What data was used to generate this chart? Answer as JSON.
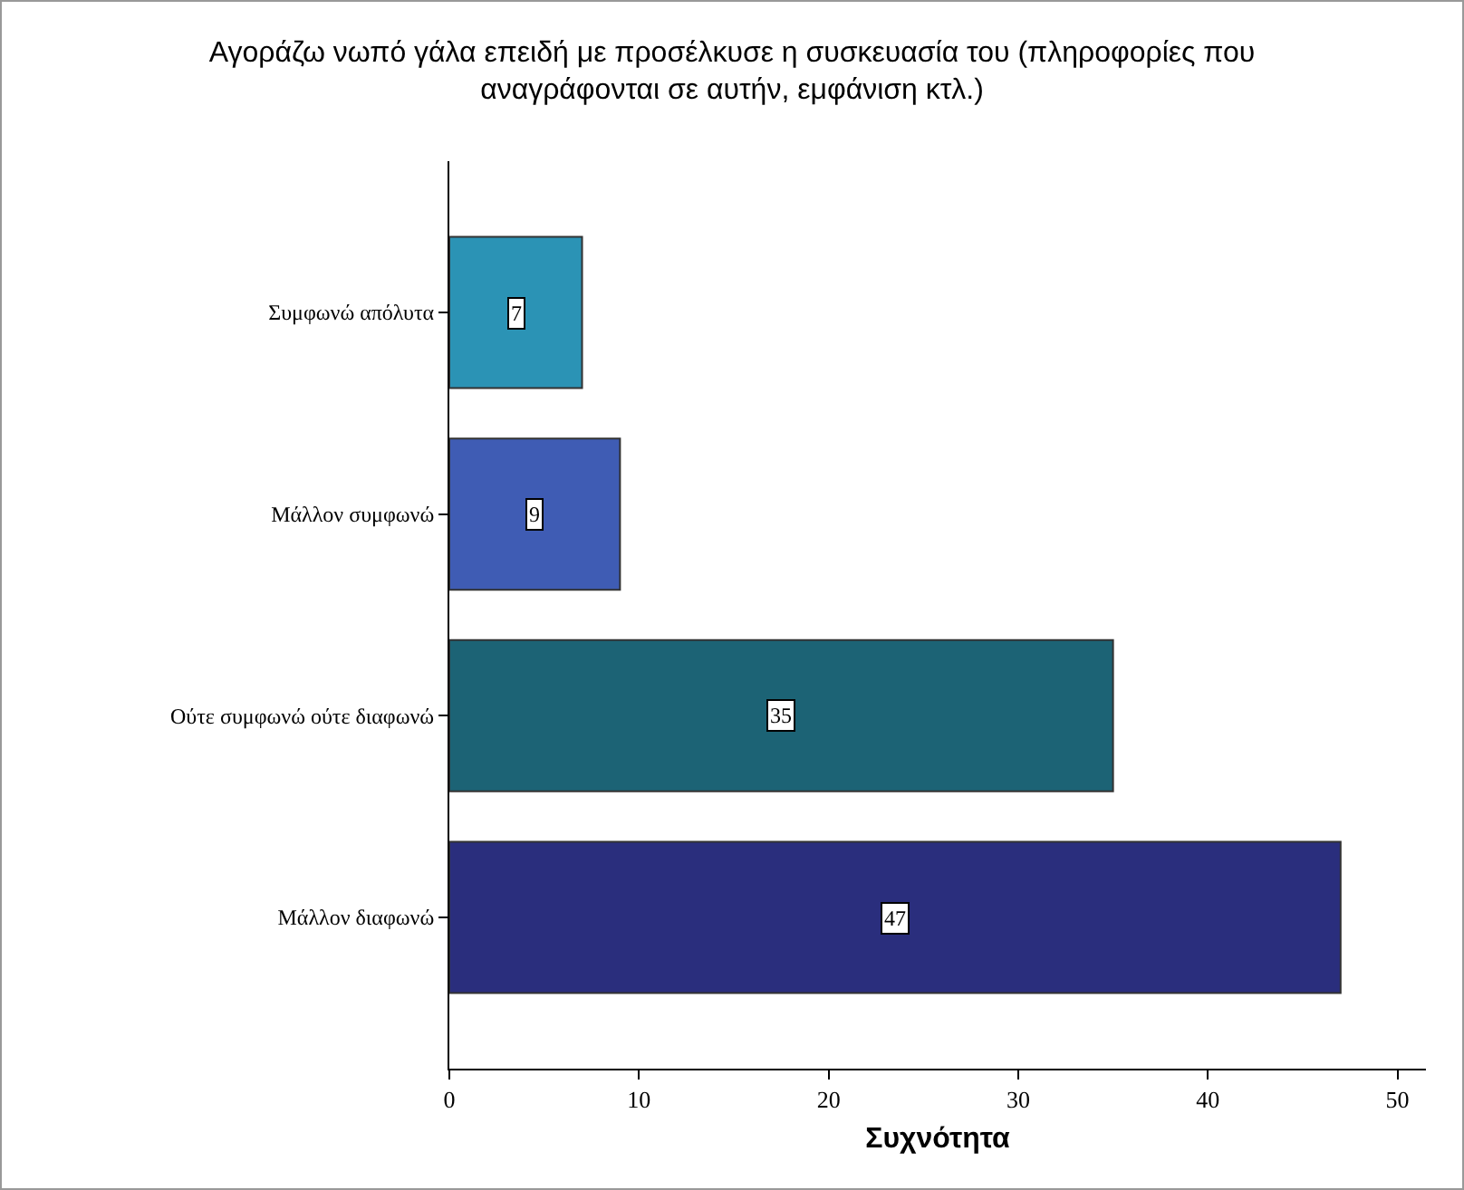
{
  "chart_data": {
    "type": "bar",
    "orientation": "horizontal",
    "title": "Αγοράζω νωπό γάλα επειδή με προσέλκυσε η συσκευασία του (πληροφορίες που αναγράφονται σε αυτήν, εμφάνιση κτλ.)",
    "xlabel": "Συχνότητα",
    "categories": [
      "Συμφωνώ απόλυτα",
      "Μάλλον συμφωνώ",
      "Ούτε συμφωνώ ούτε διαφωνώ",
      "Μάλλον διαφωνώ"
    ],
    "values": [
      7,
      9,
      35,
      47
    ],
    "colors": [
      "#2b93b5",
      "#3f5cb4",
      "#1c6375",
      "#2a2e7d"
    ],
    "xlim": [
      0,
      51.5
    ],
    "xticks": [
      0,
      10,
      20,
      30,
      40,
      50
    ],
    "data_labels": true
  }
}
